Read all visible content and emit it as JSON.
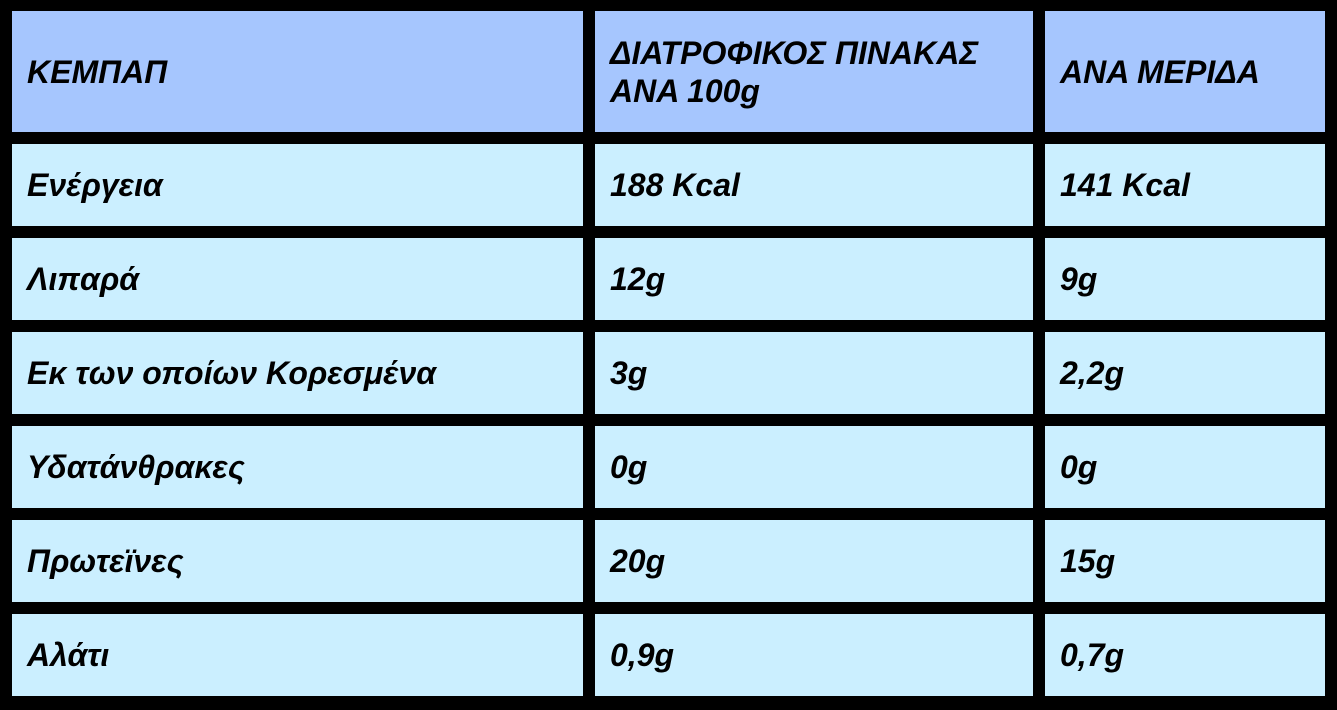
{
  "header": [
    "ΚΕΜΠΑΠ",
    "ΔΙΑΤΡΟΦΙΚΟΣ ΠΙΝΑΚΑΣ ΑΝΑ 100g",
    "ΑΝΑ ΜΕΡΙΔΑ"
  ],
  "rows": [
    [
      "Ενέργεια",
      "188 Kcal",
      "141 Kcal"
    ],
    [
      "Λιπαρά",
      "12g",
      "9g"
    ],
    [
      "Εκ των οποίων Κορεσμένα",
      "3g",
      "2,2g"
    ],
    [
      "Υδατάνθρακες",
      "0g",
      "0g"
    ],
    [
      "Πρωτεϊνες",
      "20g",
      "15g"
    ],
    [
      "Αλάτι",
      "0,9g",
      "0,7g"
    ]
  ],
  "colors": {
    "header_bg": "#a6c6fe",
    "cell_bg": "#cbefff",
    "border": "#000000"
  }
}
